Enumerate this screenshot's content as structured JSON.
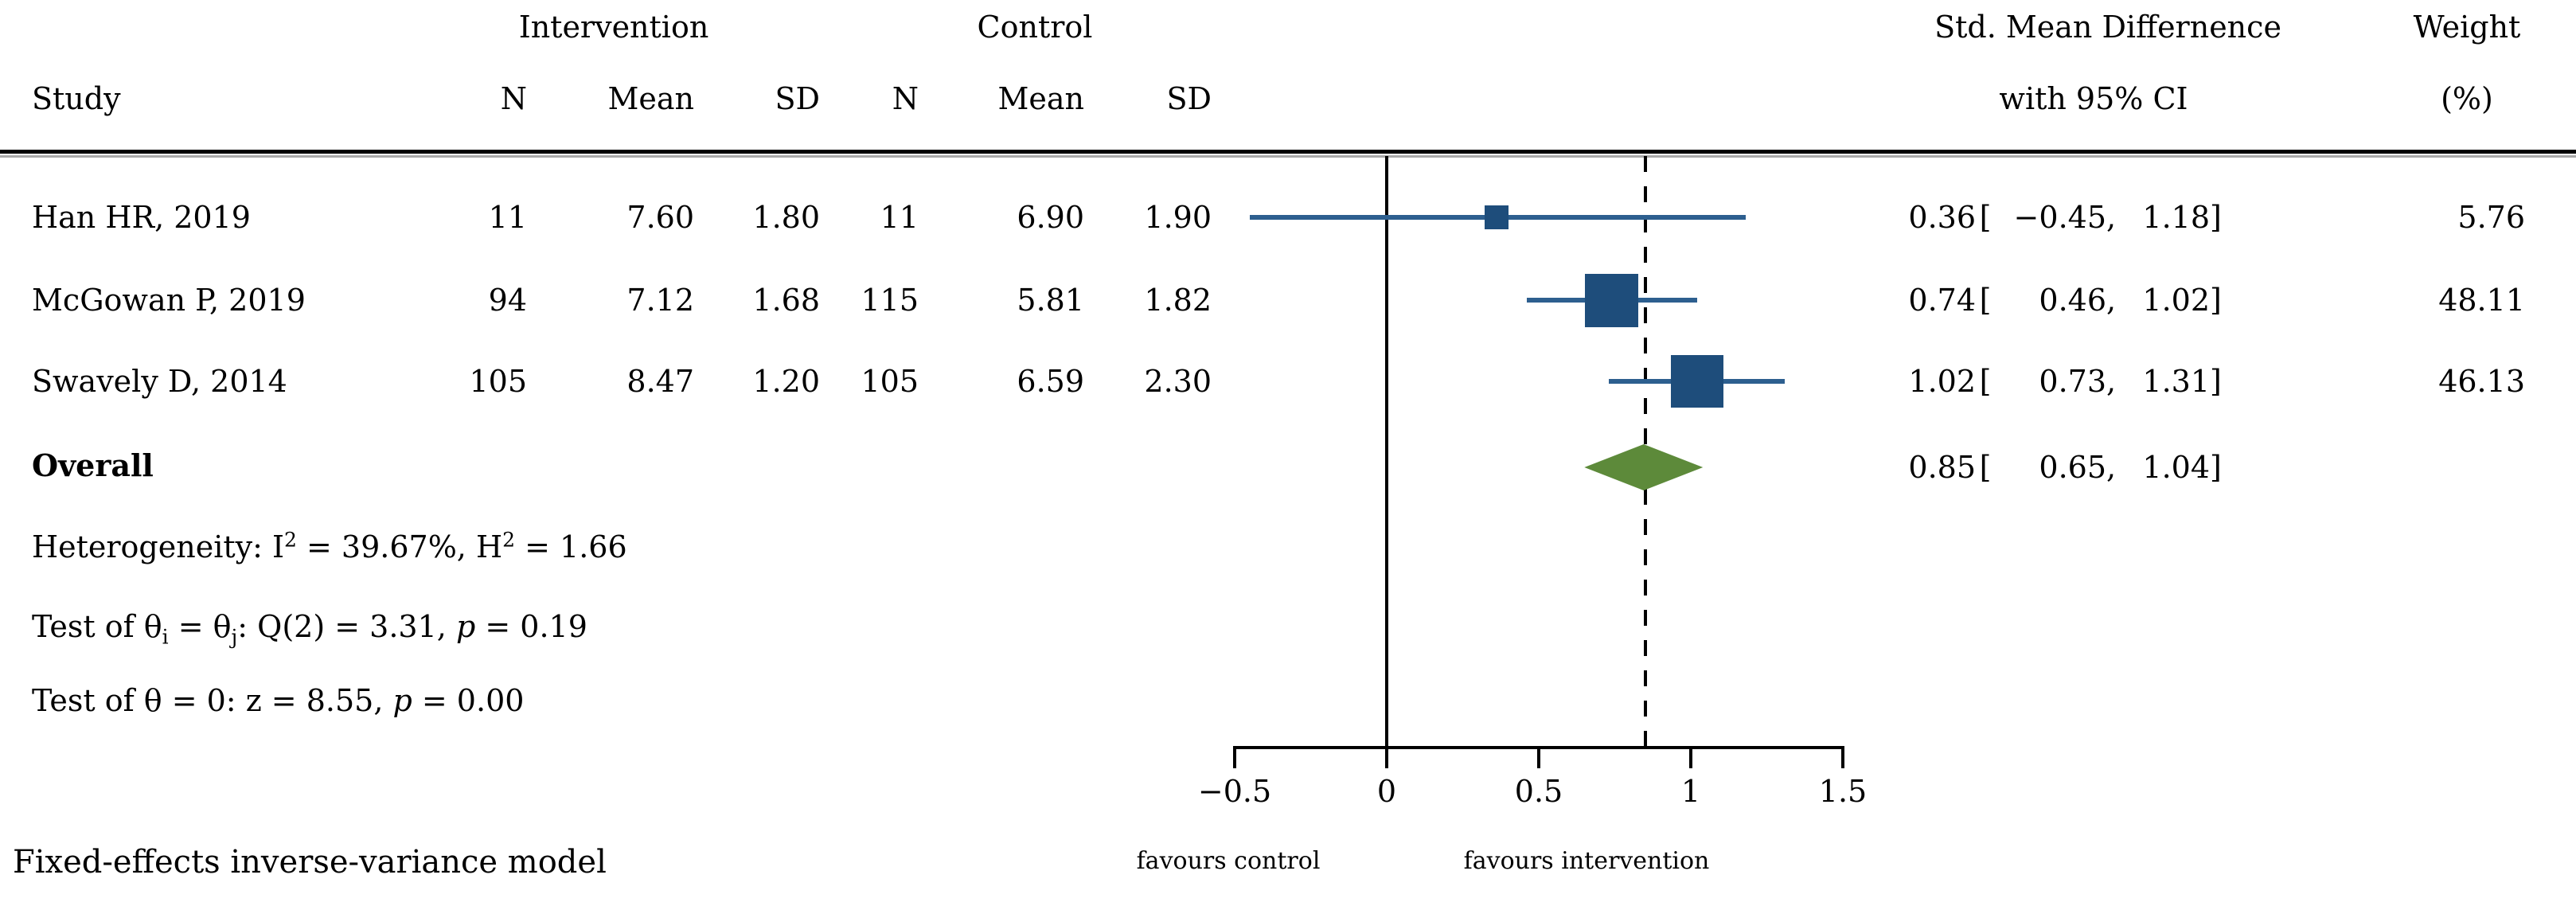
{
  "header": {
    "study": "Study",
    "group1": "Intervention",
    "group2": "Control",
    "n": "N",
    "mean": "Mean",
    "sd": "SD",
    "effect_line1": "Std. Mean Differnence",
    "effect_line2": "with 95% CI",
    "weight_line1": "Weight",
    "weight_line2": "(%)"
  },
  "figure": {
    "favours_left": "favours control",
    "favours_right": "favours intervention",
    "footnote": "Fixed-effects inverse-variance model"
  },
  "colors": {
    "marker": "#1e4d7b",
    "ci_line": "#2d5f8f",
    "diamond": "#5d8a3a",
    "axis": "#000000"
  },
  "chart_data": {
    "type": "forest",
    "x_axis": {
      "min": -0.5,
      "max": 1.5,
      "ticks": [
        -0.5,
        0,
        0.5,
        1,
        1.5
      ],
      "tick_labels": [
        "−0.5",
        "0",
        "0.5",
        "1",
        "1.5"
      ],
      "zero_line": 0,
      "overall_dashed_line": 0.85
    },
    "studies": [
      {
        "study": "Han HR, 2019",
        "intervention": {
          "n": 11,
          "mean": 7.6,
          "sd": 1.8
        },
        "control": {
          "n": 11,
          "mean": 6.9,
          "sd": 1.9
        },
        "smd": 0.36,
        "ci_low": -0.45,
        "ci_high": 1.18,
        "weight_pct": 5.76,
        "display": {
          "n1": "11",
          "mean1": "7.60",
          "sd1": "1.80",
          "n2": "11",
          "mean2": "6.90",
          "sd2": "1.90",
          "est": "0.36",
          "lo": "−0.45",
          "hi": "1.18",
          "weight": "5.76"
        }
      },
      {
        "study": "McGowan P, 2019",
        "intervention": {
          "n": 94,
          "mean": 7.12,
          "sd": 1.68
        },
        "control": {
          "n": 115,
          "mean": 5.81,
          "sd": 1.82
        },
        "smd": 0.74,
        "ci_low": 0.46,
        "ci_high": 1.02,
        "weight_pct": 48.11,
        "display": {
          "n1": "94",
          "mean1": "7.12",
          "sd1": "1.68",
          "n2": "115",
          "mean2": "5.81",
          "sd2": "1.82",
          "est": "0.74",
          "lo": "0.46",
          "hi": "1.02",
          "weight": "48.11"
        }
      },
      {
        "study": "Swavely D, 2014",
        "intervention": {
          "n": 105,
          "mean": 8.47,
          "sd": 1.2
        },
        "control": {
          "n": 105,
          "mean": 6.59,
          "sd": 2.3
        },
        "smd": 1.02,
        "ci_low": 0.73,
        "ci_high": 1.31,
        "weight_pct": 46.13,
        "display": {
          "n1": "105",
          "mean1": "8.47",
          "sd1": "1.20",
          "n2": "105",
          "mean2": "6.59",
          "sd2": "2.30",
          "est": "1.02",
          "lo": "0.73",
          "hi": "1.31",
          "weight": "46.13"
        }
      }
    ],
    "overall": {
      "label": "Overall",
      "smd": 0.85,
      "ci_low": 0.65,
      "ci_high": 1.04,
      "display": {
        "est": "0.85",
        "lo": "0.65",
        "hi": "1.04"
      }
    },
    "stats_lines": [
      {
        "name": "heterogeneity",
        "segments": [
          {
            "t": "Heterogeneity: I"
          },
          {
            "t": "2",
            "style": "sup"
          },
          {
            "t": " = 39.67%, H"
          },
          {
            "t": "2",
            "style": "sup"
          },
          {
            "t": " = 1.66"
          }
        ]
      },
      {
        "name": "test-theta-ij",
        "segments": [
          {
            "t": "Test of θ"
          },
          {
            "t": "i",
            "style": "sub"
          },
          {
            "t": " = θ"
          },
          {
            "t": "j",
            "style": "sub"
          },
          {
            "t": ": Q(2) = 3.31, "
          },
          {
            "t": "p",
            "style": "it"
          },
          {
            "t": " = 0.19"
          }
        ]
      },
      {
        "name": "test-theta-zero",
        "segments": [
          {
            "t": "Test of θ = 0: z = 8.55, "
          },
          {
            "t": "p",
            "style": "it"
          },
          {
            "t": " = 0.00"
          }
        ]
      }
    ]
  }
}
